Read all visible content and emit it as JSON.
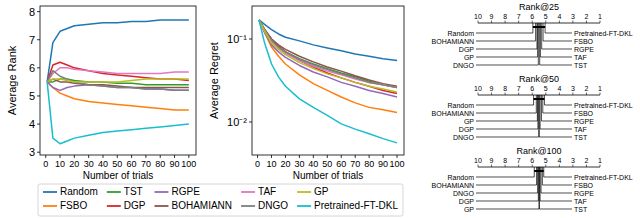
{
  "chart_data": [
    {
      "type": "line",
      "x_label": "Number of trials",
      "y_label": "Average Rank",
      "x": [
        1,
        5,
        10,
        15,
        20,
        30,
        40,
        50,
        60,
        70,
        80,
        90,
        100
      ],
      "xlim": [
        -4,
        105
      ],
      "xticks": [
        0,
        10,
        20,
        30,
        40,
        50,
        60,
        70,
        80,
        90,
        100
      ],
      "ylim": [
        2.9,
        8.2
      ],
      "yticks": [
        3,
        4,
        5,
        6,
        7,
        8
      ],
      "grid": false,
      "legend": "below",
      "series": [
        {
          "name": "Random",
          "color": "#1f77b4",
          "values": [
            5.5,
            6.9,
            7.3,
            7.4,
            7.5,
            7.55,
            7.6,
            7.6,
            7.65,
            7.65,
            7.7,
            7.7,
            7.7
          ]
        },
        {
          "name": "FSBO",
          "color": "#ff7f0e",
          "values": [
            5.5,
            5.3,
            5.1,
            5.0,
            4.9,
            4.8,
            4.75,
            4.7,
            4.65,
            4.6,
            4.55,
            4.5,
            4.5
          ]
        },
        {
          "name": "TST",
          "color": "#2ca02c",
          "values": [
            5.5,
            5.5,
            5.6,
            5.6,
            5.55,
            5.5,
            5.5,
            5.45,
            5.45,
            5.4,
            5.4,
            5.4,
            5.4
          ]
        },
        {
          "name": "DGP",
          "color": "#d62728",
          "values": [
            5.5,
            6.1,
            6.2,
            6.1,
            6.0,
            5.9,
            5.8,
            5.75,
            5.7,
            5.65,
            5.6,
            5.6,
            5.55
          ]
        },
        {
          "name": "RGPE",
          "color": "#9467bd",
          "values": [
            5.5,
            5.3,
            5.2,
            5.3,
            5.35,
            5.4,
            5.35,
            5.3,
            5.3,
            5.25,
            5.25,
            5.2,
            5.2
          ]
        },
        {
          "name": "BOHAMIANN",
          "color": "#8c564b",
          "values": [
            5.5,
            5.6,
            5.5,
            5.5,
            5.45,
            5.4,
            5.4,
            5.35,
            5.3,
            5.3,
            5.3,
            5.3,
            5.3
          ]
        },
        {
          "name": "TAF",
          "color": "#e377c2",
          "values": [
            5.5,
            5.8,
            6.0,
            6.0,
            5.95,
            5.9,
            5.85,
            5.8,
            5.8,
            5.8,
            5.8,
            5.85,
            5.85
          ]
        },
        {
          "name": "DNGO",
          "color": "#7f7f7f",
          "values": [
            5.5,
            5.9,
            5.7,
            5.6,
            5.5,
            5.4,
            5.35,
            5.3,
            5.3,
            5.25,
            5.25,
            5.2,
            5.2
          ]
        },
        {
          "name": "GP",
          "color": "#bcbd22",
          "values": [
            5.5,
            5.6,
            5.6,
            5.55,
            5.5,
            5.5,
            5.5,
            5.5,
            5.55,
            5.6,
            5.6,
            5.6,
            5.6
          ]
        },
        {
          "name": "Pretrained-FT-DKL",
          "color": "#17becf",
          "values": [
            5.5,
            3.5,
            3.3,
            3.4,
            3.5,
            3.6,
            3.7,
            3.75,
            3.8,
            3.85,
            3.9,
            3.95,
            4.0
          ]
        }
      ]
    },
    {
      "type": "line",
      "x_label": "Number of trials",
      "y_label": "Average Regret",
      "log": "y",
      "x": [
        1,
        5,
        10,
        15,
        20,
        30,
        40,
        50,
        60,
        70,
        80,
        90,
        100
      ],
      "xlim": [
        -4,
        105
      ],
      "xticks": [
        0,
        10,
        20,
        30,
        40,
        50,
        60,
        70,
        80,
        90,
        100
      ],
      "ylim": [
        0.004,
        0.25
      ],
      "yticks": [
        {
          "value": 0.01,
          "label": "10⁻²"
        },
        {
          "value": 0.1,
          "label": "10⁻¹"
        }
      ],
      "grid": false,
      "series": [
        {
          "color": "#1f77b4",
          "values": [
            0.17,
            0.15,
            0.13,
            0.115,
            0.105,
            0.095,
            0.085,
            0.078,
            0.072,
            0.066,
            0.062,
            0.058,
            0.055
          ]
        },
        {
          "color": "#ff7f0e",
          "values": [
            0.17,
            0.12,
            0.08,
            0.062,
            0.05,
            0.037,
            0.029,
            0.024,
            0.02,
            0.017,
            0.015,
            0.014,
            0.013
          ]
        },
        {
          "color": "#2ca02c",
          "values": [
            0.17,
            0.13,
            0.095,
            0.08,
            0.07,
            0.058,
            0.05,
            0.044,
            0.039,
            0.035,
            0.031,
            0.028,
            0.026
          ]
        },
        {
          "color": "#d62728",
          "values": [
            0.17,
            0.13,
            0.1,
            0.082,
            0.07,
            0.055,
            0.046,
            0.039,
            0.034,
            0.03,
            0.027,
            0.024,
            0.022
          ]
        },
        {
          "color": "#9467bd",
          "values": [
            0.17,
            0.12,
            0.085,
            0.07,
            0.06,
            0.048,
            0.04,
            0.035,
            0.03,
            0.027,
            0.024,
            0.022,
            0.02
          ]
        },
        {
          "color": "#8c564b",
          "values": [
            0.17,
            0.13,
            0.1,
            0.085,
            0.075,
            0.062,
            0.053,
            0.046,
            0.041,
            0.036,
            0.032,
            0.029,
            0.027
          ]
        },
        {
          "color": "#e377c2",
          "values": [
            0.17,
            0.125,
            0.092,
            0.077,
            0.067,
            0.055,
            0.047,
            0.041,
            0.037,
            0.033,
            0.03,
            0.028,
            0.026
          ]
        },
        {
          "color": "#7f7f7f",
          "values": [
            0.17,
            0.13,
            0.097,
            0.08,
            0.07,
            0.057,
            0.049,
            0.043,
            0.038,
            0.034,
            0.03,
            0.028,
            0.026
          ]
        },
        {
          "color": "#bcbd22",
          "values": [
            0.17,
            0.125,
            0.09,
            0.075,
            0.065,
            0.052,
            0.044,
            0.038,
            0.034,
            0.03,
            0.027,
            0.025,
            0.023
          ]
        },
        {
          "color": "#17becf",
          "values": [
            0.17,
            0.09,
            0.05,
            0.035,
            0.027,
            0.019,
            0.015,
            0.012,
            0.0095,
            0.0082,
            0.0072,
            0.0063,
            0.0056
          ]
        }
      ]
    },
    {
      "type": "cd_diagram",
      "title": "Rank@25",
      "xlim": [
        10,
        1
      ],
      "xticks": [
        10,
        9,
        8,
        7,
        6,
        5,
        4,
        3,
        2,
        1
      ],
      "categories": [
        "Random",
        "BOHAMIANN",
        "DGP",
        "GP",
        "DNGO",
        "Pretrained-FT-DKL",
        "FSBO",
        "RGPE",
        "TAF",
        "TST"
      ],
      "values": [
        5.95,
        5.75,
        5.65,
        5.6,
        5.55,
        5.05,
        5.2,
        5.3,
        5.4,
        5.45
      ]
    },
    {
      "type": "cd_diagram",
      "title": "Rank@50",
      "xlim": [
        10,
        1
      ],
      "xticks": [
        10,
        9,
        8,
        7,
        6,
        5,
        4,
        3,
        2,
        1
      ],
      "categories": [
        "Random",
        "BOHAMIANN",
        "GP",
        "DGP",
        "DNGO",
        "Pretrained-FT-DKL",
        "FSBO",
        "RGPE",
        "TAF",
        "TST"
      ],
      "values": [
        5.9,
        5.7,
        5.62,
        5.58,
        5.52,
        5.1,
        5.22,
        5.32,
        5.42,
        5.48
      ]
    },
    {
      "type": "cd_diagram",
      "title": "Rank@100",
      "xlim": [
        10,
        1
      ],
      "xticks": [
        10,
        9,
        8,
        7,
        6,
        5,
        4,
        3,
        2,
        1
      ],
      "categories": [
        "Random",
        "BOHAMIANN",
        "DNGO",
        "DGP",
        "GP",
        "Pretrained-FT-DKL",
        "FSBO",
        "RGPE",
        "TAF",
        "TST"
      ],
      "values": [
        5.85,
        5.68,
        5.6,
        5.55,
        5.5,
        5.15,
        5.25,
        5.35,
        5.42,
        5.47
      ]
    }
  ]
}
